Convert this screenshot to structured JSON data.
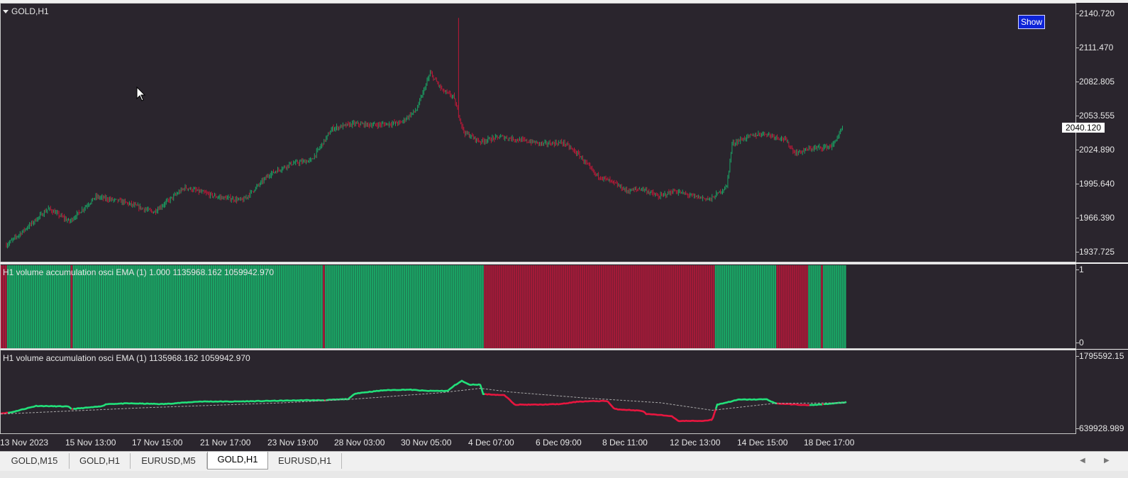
{
  "chart": {
    "symbol_title": "GOLD,H1",
    "show_button_label": "Show",
    "current_price": "2040.120",
    "price_axis_labels": [
      "2140.720",
      "2111.470",
      "2082.805",
      "2053.555",
      "2024.890",
      "1995.640",
      "1966.390",
      "1937.725"
    ],
    "price_range": [
      1937.725,
      2140.72
    ]
  },
  "indicator1": {
    "title": "H1 volume accumulation osci EMA (1) 1.000 1135968.162 1059942.970",
    "axis_labels": [
      "1",
      "0"
    ],
    "colors": {
      "up": "#1aa364",
      "down": "#a31a38"
    },
    "segments": [
      {
        "state": "down",
        "bars": 3
      },
      {
        "state": "up",
        "bars": 30
      },
      {
        "state": "down",
        "bars": 1
      },
      {
        "state": "up",
        "bars": 118
      },
      {
        "state": "down",
        "bars": 1
      },
      {
        "state": "up",
        "bars": 75
      },
      {
        "state": "down",
        "bars": 109
      },
      {
        "state": "up",
        "bars": 29
      },
      {
        "state": "down",
        "bars": 15
      },
      {
        "state": "up",
        "bars": 6
      },
      {
        "state": "down",
        "bars": 1
      },
      {
        "state": "up",
        "bars": 11
      }
    ]
  },
  "indicator2": {
    "title": "H1 volume accumulation osci EMA (1) 1135968.162 1059942.970",
    "axis_labels": [
      "1795592.15",
      "639928.989"
    ],
    "value_range": [
      639928.989,
      1795592.15
    ],
    "colors": {
      "up": "#22e07a",
      "down": "#e8163f",
      "signal": "#a8a8a8"
    }
  },
  "time_axis": {
    "labels": [
      "13 Nov 2023",
      "15 Nov 13:00",
      "17 Nov 15:00",
      "21 Nov 17:00",
      "23 Nov 19:00",
      "28 Nov 03:00",
      "30 Nov 05:00",
      "4 Dec 07:00",
      "6 Dec 09:00",
      "8 Dec 11:00",
      "12 Dec 13:00",
      "14 Dec 15:00",
      "18 Dec 17:00"
    ]
  },
  "tabs": [
    {
      "label": "GOLD,M15",
      "active": false
    },
    {
      "label": "GOLD,H1",
      "active": false
    },
    {
      "label": "EURUSD,M5",
      "active": false
    },
    {
      "label": "GOLD,H1",
      "active": true
    },
    {
      "label": "EURUSD,H1",
      "active": false
    }
  ],
  "colors": {
    "background": "#2a252d",
    "bull_candle": "#1aa364",
    "bear_candle": "#c01838",
    "text": "#e6e6e6",
    "show_button": "#0d24d8"
  }
}
